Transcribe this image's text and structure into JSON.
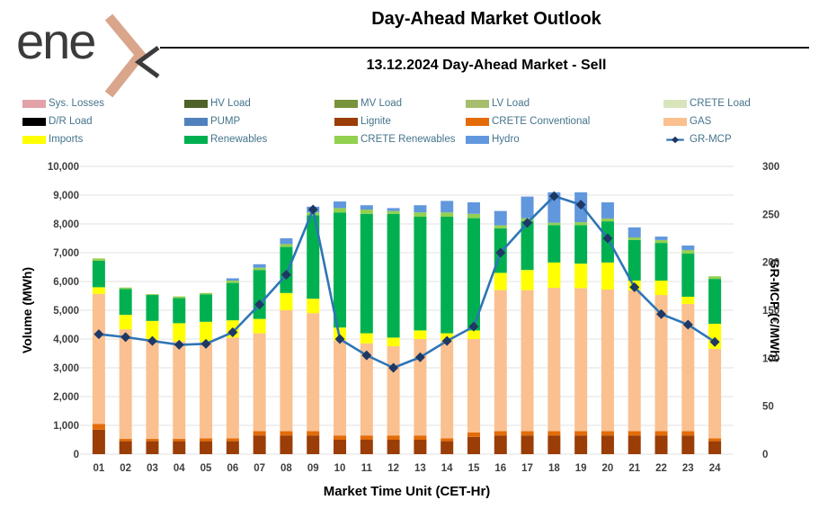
{
  "header": {
    "logo_text": "ene",
    "title": "Day-Ahead Market Outlook",
    "subtitle": "13.12.2024  Day-Ahead Market - Sell"
  },
  "legend": {
    "items": [
      {
        "label": "Sys. Losses",
        "color": "#e3a1a8",
        "swatch": "box"
      },
      {
        "label": "HV Load",
        "color": "#4f6228",
        "swatch": "box"
      },
      {
        "label": "MV Load",
        "color": "#77933c",
        "swatch": "box"
      },
      {
        "label": "LV Load",
        "color": "#a6bd6e",
        "swatch": "box"
      },
      {
        "label": "CRETE Load",
        "color": "#d7e4bc",
        "swatch": "box"
      },
      {
        "label": "D/R Load",
        "color": "#000000",
        "swatch": "box"
      },
      {
        "label": "PUMP",
        "color": "#4f81bd",
        "swatch": "box"
      },
      {
        "label": "Lignite",
        "color": "#9a3d06",
        "swatch": "box"
      },
      {
        "label": "CRETE Conventional",
        "color": "#e36c09",
        "swatch": "box"
      },
      {
        "label": "GAS",
        "color": "#fac090",
        "swatch": "box"
      },
      {
        "label": "Imports",
        "color": "#ffff00",
        "swatch": "box"
      },
      {
        "label": "Renewables",
        "color": "#00b050",
        "swatch": "box"
      },
      {
        "label": "CRETE Renewables",
        "color": "#92d050",
        "swatch": "box"
      },
      {
        "label": "Hydro",
        "color": "#6197dd",
        "swatch": "box"
      },
      {
        "label": "GR-MCP",
        "color": "#2e75b6",
        "marker_color": "#1f3864",
        "swatch": "line"
      }
    ]
  },
  "chart_data": {
    "type": "combo_stacked_bar_line",
    "title": "Day-Ahead Market Outlook",
    "subtitle": "13.12.2024  Day-Ahead Market - Sell",
    "xlabel": "Market Time Unit (CET-Hr)",
    "ylabel_left": "Volume (MWh)",
    "ylabel_right": "GR-MCP (€/MWh)",
    "ylim_left": [
      0,
      10000
    ],
    "ytick_step_left": 1000,
    "ylim_right": [
      0,
      300
    ],
    "ytick_step_right": 50,
    "grid": true,
    "legend_position": "top",
    "categories": [
      "01",
      "02",
      "03",
      "04",
      "05",
      "06",
      "07",
      "08",
      "09",
      "10",
      "11",
      "12",
      "13",
      "14",
      "15",
      "16",
      "17",
      "18",
      "19",
      "20",
      "21",
      "22",
      "23",
      "24"
    ],
    "series": [
      {
        "name": "Lignite",
        "color": "#9a3d06",
        "values": [
          850,
          450,
          450,
          450,
          450,
          450,
          650,
          650,
          650,
          500,
          500,
          500,
          500,
          450,
          600,
          650,
          650,
          650,
          650,
          650,
          650,
          650,
          650,
          450
        ]
      },
      {
        "name": "CRETE Conventional",
        "color": "#e36c09",
        "values": [
          200,
          80,
          80,
          80,
          100,
          100,
          150,
          150,
          150,
          150,
          150,
          150,
          150,
          100,
          150,
          150,
          150,
          150,
          150,
          150,
          150,
          150,
          150,
          100
        ]
      },
      {
        "name": "GAS",
        "color": "#fac090",
        "values": [
          4520,
          3810,
          3440,
          3390,
          3350,
          3500,
          3400,
          4200,
          4100,
          3300,
          3200,
          3100,
          3350,
          3400,
          3250,
          4900,
          4900,
          4980,
          4970,
          4920,
          4890,
          4730,
          4420,
          3110
        ]
      },
      {
        "name": "Imports",
        "color": "#ffff00",
        "values": [
          230,
          500,
          660,
          630,
          700,
          600,
          500,
          600,
          500,
          450,
          350,
          300,
          300,
          250,
          300,
          600,
          700,
          880,
          850,
          940,
          340,
          500,
          250,
          870
        ]
      },
      {
        "name": "Renewables",
        "color": "#00b050",
        "values": [
          920,
          900,
          900,
          870,
          950,
          1300,
          1700,
          1600,
          2900,
          4000,
          4150,
          4300,
          3950,
          4050,
          3900,
          1550,
          1700,
          1300,
          1340,
          1430,
          1410,
          1310,
          1500,
          1560
        ]
      },
      {
        "name": "CRETE Renewables",
        "color": "#92d050",
        "values": [
          80,
          50,
          30,
          60,
          50,
          80,
          80,
          100,
          100,
          150,
          150,
          100,
          150,
          150,
          150,
          100,
          100,
          80,
          100,
          100,
          90,
          100,
          120,
          90
        ]
      },
      {
        "name": "Hydro",
        "color": "#6197dd",
        "values": [
          0,
          0,
          0,
          0,
          0,
          80,
          120,
          200,
          200,
          230,
          150,
          100,
          250,
          400,
          400,
          500,
          750,
          1060,
          1040,
          560,
          350,
          120,
          160,
          0
        ]
      }
    ],
    "line_series": {
      "name": "GR-MCP",
      "color": "#2e75b6",
      "marker": "diamond",
      "marker_color": "#1f3864",
      "axis": "right",
      "values": [
        125,
        122,
        118,
        114,
        115,
        127,
        156,
        187,
        255,
        120,
        103,
        90,
        101,
        118,
        133,
        210,
        241,
        269,
        260,
        225,
        174,
        146,
        135,
        117
      ]
    }
  }
}
